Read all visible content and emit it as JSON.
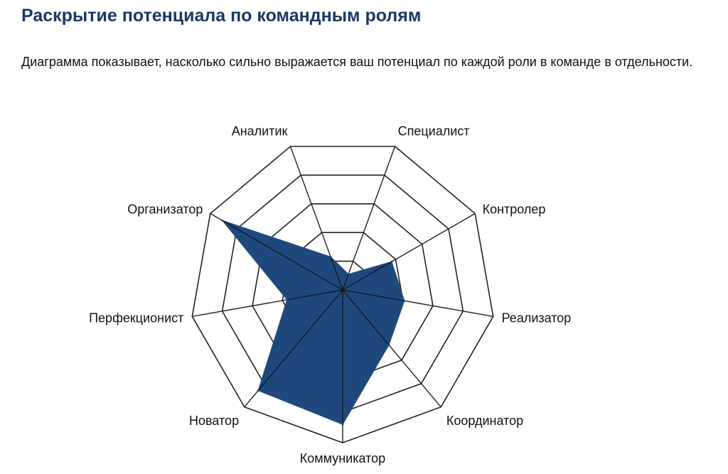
{
  "page": {
    "title": "Раскрытие потенциала по командным ролям",
    "description": "Диаграмма показывает, насколько сильно выражается ваш потенциал по каждой роли в команде в отдельности."
  },
  "colors": {
    "title": "#1f3864",
    "fill": "#1f497d",
    "grid": "#222222"
  },
  "chart_data": {
    "type": "radar",
    "title": "",
    "categories": [
      "Специалист",
      "Контролер",
      "Реализатор",
      "Координатор",
      "Коммуникатор",
      "Новатор",
      "Перфекционист",
      "Организатор",
      "Аналитик"
    ],
    "series": [
      {
        "values": [
          11,
          37,
          41,
          47,
          88,
          86,
          37,
          91,
          23
        ]
      }
    ],
    "rlim": [
      0,
      100
    ],
    "rings": 5,
    "legend": "none",
    "grid": true
  }
}
